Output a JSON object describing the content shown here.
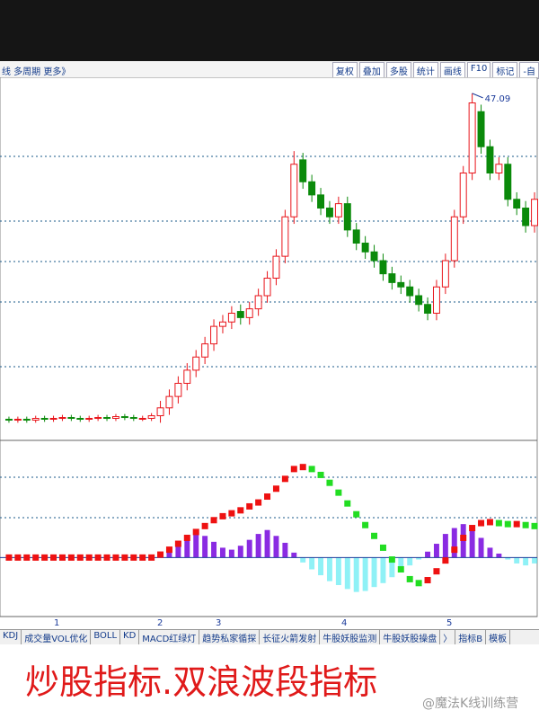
{
  "toolbar": {
    "left": "线  多周期  更多》",
    "buttons": [
      "复权",
      "叠加",
      "多股",
      "统计",
      "画线",
      "F10",
      "标记",
      "-自"
    ]
  },
  "chart_data": [
    {
      "type": "candlestick",
      "up_color": "#e8141a",
      "down_color": "#0b8a0b",
      "ylim": [
        8,
        48
      ],
      "open": [
        9.9,
        9.8,
        9.9,
        9.8,
        10,
        9.9,
        10,
        10.1,
        10,
        9.9,
        10,
        10.1,
        10,
        10.2,
        10.1,
        10,
        10,
        10.3,
        11.2,
        12.5,
        14,
        15.5,
        17,
        18.5,
        20.5,
        21,
        22.2,
        21.5,
        22.5,
        24,
        26,
        28.5,
        33,
        39.5,
        37,
        35.5,
        34,
        33,
        34.5,
        31.5,
        30,
        29,
        28,
        26.5,
        25.5,
        25,
        24,
        23,
        22,
        25,
        28,
        33,
        38,
        45,
        41,
        38,
        39,
        35,
        34,
        32
      ],
      "close": [
        9.8,
        9.9,
        9.8,
        10,
        9.9,
        10,
        10.1,
        10,
        9.9,
        10,
        10.1,
        10,
        10.2,
        10.1,
        10,
        10,
        10.3,
        11.2,
        12.5,
        14,
        15.5,
        17,
        18.5,
        20.5,
        21,
        22,
        21.5,
        22.5,
        24,
        26,
        28.5,
        33,
        39,
        37,
        35.5,
        34,
        33,
        34.5,
        31.5,
        30,
        29,
        28,
        26.5,
        25.5,
        25,
        24,
        23,
        22,
        25,
        28,
        33,
        38,
        46,
        41,
        38,
        39,
        35,
        34,
        32,
        35
      ],
      "high": [
        10.2,
        10.2,
        10.2,
        10.3,
        10.3,
        10.3,
        10.4,
        10.4,
        10.3,
        10.3,
        10.4,
        10.4,
        10.5,
        10.5,
        10.4,
        10.3,
        10.6,
        12.0,
        13.3,
        14.8,
        16.3,
        17.8,
        19.3,
        21.3,
        21.8,
        22.8,
        23.0,
        23.3,
        24.8,
        26.8,
        29.3,
        33.8,
        40.5,
        40.3,
        37.8,
        36.3,
        34.8,
        35.3,
        35.3,
        32.3,
        30.8,
        29.8,
        28.8,
        27.3,
        26.3,
        25.8,
        24.8,
        23.8,
        25.8,
        28.8,
        33.8,
        38.8,
        47.09,
        45.8,
        41.8,
        39.8,
        39.8,
        35.8,
        34.8,
        35.8
      ],
      "low": [
        9.5,
        9.5,
        9.5,
        9.5,
        9.6,
        9.6,
        9.7,
        9.7,
        9.6,
        9.6,
        9.7,
        9.7,
        9.7,
        9.8,
        9.7,
        9.7,
        9.7,
        9.5,
        10.4,
        11.7,
        13.2,
        14.7,
        16.2,
        17.7,
        19.7,
        20.2,
        20.7,
        20.7,
        21.7,
        23.2,
        25.2,
        27.7,
        32.2,
        36.2,
        34.7,
        33.2,
        32.2,
        32.2,
        30.7,
        29.2,
        28.2,
        27.2,
        25.7,
        24.7,
        24.2,
        23.2,
        22.2,
        21.2,
        21.2,
        24.2,
        27.2,
        32.2,
        37.2,
        40.2,
        37.2,
        37.2,
        34.2,
        33.2,
        31.2,
        31.2
      ]
    },
    {
      "type": "indicator",
      "ylim": [
        -6,
        11
      ],
      "up_color": "#ee1111",
      "down_color": "#22dd22",
      "pos_color": "#8a2be2",
      "neg_color": "#44e8f0",
      "wave": [
        0,
        0,
        0,
        0,
        0,
        0,
        0,
        0,
        0,
        0,
        0,
        0,
        0,
        0,
        0,
        0,
        0,
        0.3,
        0.8,
        1.4,
        2,
        2.6,
        3.2,
        3.8,
        4.2,
        4.5,
        4.8,
        5.2,
        5.6,
        6.2,
        7,
        8,
        9,
        9.2,
        9,
        8.4,
        7.6,
        6.6,
        5.5,
        4.4,
        3.3,
        2.2,
        1,
        -0.2,
        -1.2,
        -2.2,
        -2.6,
        -2.3,
        -1.4,
        -0.3,
        0.8,
        2,
        3,
        3.5,
        3.6,
        3.5,
        3.4,
        3.4,
        3.3,
        3.2
      ],
      "hist": [
        0,
        0,
        0,
        0,
        0,
        0,
        0,
        0,
        0,
        0,
        0,
        0,
        0,
        0,
        0,
        0,
        0,
        0.5,
        1,
        1.5,
        2,
        2.5,
        2.2,
        1.6,
        1,
        0.8,
        1.2,
        1.8,
        2.4,
        2.8,
        2.2,
        1.5,
        0.5,
        -0.5,
        -1.2,
        -1.8,
        -2.4,
        -2.8,
        -3.2,
        -3.5,
        -3.4,
        -3,
        -2.6,
        -2,
        -1.4,
        -0.8,
        -0.2,
        0.6,
        1.4,
        2.4,
        3,
        3.4,
        3,
        2,
        1,
        0.4,
        -0.2,
        -0.6,
        -0.8,
        -0.6
      ]
    }
  ],
  "periods": [
    "1",
    "2",
    "3",
    "4",
    "5"
  ],
  "tabs": [
    "KDJ",
    "成交量VOL优化",
    "BOLL",
    "KD",
    "MACD红绿灯",
    "趋势私家循探",
    "长征火箭发射",
    "牛股妖股监测",
    "牛股妖股操盘",
    "〉",
    "指标B",
    "模板"
  ],
  "caption": "炒股指标.双浪波段指标",
  "watermark": "@魔法K线训练营"
}
